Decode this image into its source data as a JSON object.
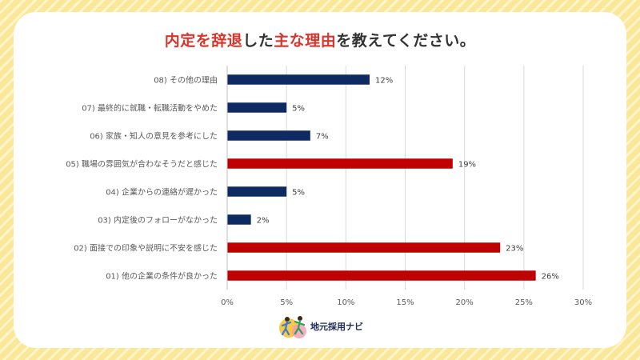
{
  "title": {
    "part1": "内定を",
    "part2": "辞退",
    "part3": "した",
    "part4": "主な理由",
    "part5": "を教えてください。"
  },
  "logo": {
    "text": "地元採用ナビ"
  },
  "colors": {
    "highlight": "#c00000",
    "normal": "#0e2a63",
    "title_accent": "#d9352b"
  },
  "chart_data": {
    "type": "bar",
    "orientation": "horizontal",
    "categories": [
      "08) その他の理由",
      "07) 最終的に就職・転職活動をやめた",
      "06) 家族・知人の意見を参考にした",
      "05) 職場の雰囲気が合わなそうだと感じた",
      "04) 企業からの連絡が遅かった",
      "03) 内定後のフォローがなかった",
      "02) 面接での印象や説明に不安を感じた",
      "01) 他の企業の条件が良かった"
    ],
    "values": [
      12,
      5,
      7,
      19,
      5,
      2,
      23,
      26
    ],
    "value_labels": [
      "12%",
      "5%",
      "7%",
      "19%",
      "5%",
      "2%",
      "23%",
      "26%"
    ],
    "highlighted": [
      false,
      false,
      false,
      true,
      false,
      false,
      true,
      true
    ],
    "xlim": [
      0,
      30
    ],
    "xticks": [
      0,
      5,
      10,
      15,
      20,
      25,
      30
    ],
    "xtick_labels": [
      "0%",
      "5%",
      "10%",
      "15%",
      "20%",
      "25%",
      "30%"
    ],
    "grid": true,
    "xlabel": "",
    "ylabel": ""
  }
}
